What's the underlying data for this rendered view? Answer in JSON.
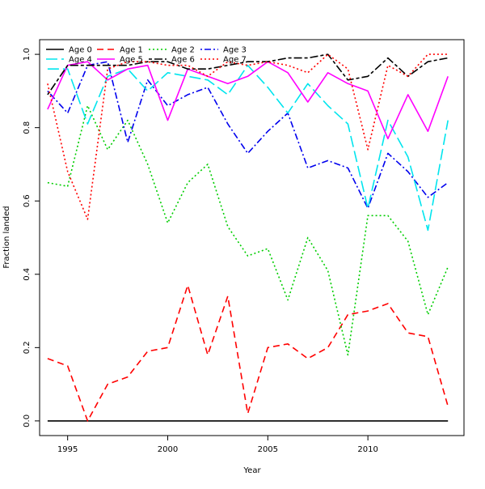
{
  "chart_data": {
    "type": "line",
    "title": "",
    "xlabel": "Year",
    "ylabel": "Fraction landed",
    "xlim": [
      1993.6,
      2014.8
    ],
    "ylim": [
      -0.04,
      1.04
    ],
    "xticks": [
      1995,
      2000,
      2005,
      2010
    ],
    "yticks": [
      0.0,
      0.2,
      0.4,
      0.6,
      0.8,
      1.0
    ],
    "ytick_labels": [
      "0.0",
      "0.2",
      "0.4",
      "0.6",
      "0.8",
      "1.0"
    ],
    "grid": false,
    "legend_position": "top-left",
    "x": [
      1994,
      1995,
      1996,
      1997,
      1998,
      1999,
      2000,
      2001,
      2002,
      2003,
      2004,
      2005,
      2006,
      2007,
      2008,
      2009,
      2010,
      2011,
      2012,
      2013,
      2014
    ],
    "series": [
      {
        "name": "Age 0",
        "color": "#000000",
        "dash": "solid",
        "values": [
          0,
          0,
          0,
          0,
          0,
          0,
          0,
          0,
          0,
          0,
          0,
          0,
          0,
          0,
          0,
          0,
          0,
          0,
          0,
          0,
          0
        ]
      },
      {
        "name": "Age 1",
        "color": "#ff0000",
        "dash": "dashed",
        "values": [
          0.17,
          0.15,
          0.0,
          0.1,
          0.12,
          0.19,
          0.2,
          0.37,
          0.18,
          0.34,
          0.02,
          0.2,
          0.21,
          0.17,
          0.2,
          0.29,
          0.3,
          0.32,
          0.24,
          0.23,
          0.04
        ]
      },
      {
        "name": "Age 2",
        "color": "#00cd00",
        "dash": "dotted",
        "values": [
          0.65,
          0.64,
          0.86,
          0.74,
          0.82,
          0.7,
          0.54,
          0.65,
          0.7,
          0.53,
          0.45,
          0.47,
          0.33,
          0.5,
          0.41,
          0.18,
          0.56,
          0.56,
          0.49,
          0.29,
          0.42
        ]
      },
      {
        "name": "Age 3",
        "color": "#0000ee",
        "dash": "dotdash",
        "values": [
          0.9,
          0.84,
          0.97,
          0.98,
          0.76,
          0.93,
          0.86,
          0.89,
          0.91,
          0.81,
          0.73,
          0.79,
          0.84,
          0.69,
          0.71,
          0.69,
          0.58,
          0.73,
          0.68,
          0.61,
          0.65
        ]
      },
      {
        "name": "Age 4",
        "color": "#00e5ee",
        "dash": "longdash",
        "values": [
          0.96,
          0.96,
          0.81,
          0.94,
          0.96,
          0.9,
          0.95,
          0.94,
          0.93,
          0.89,
          0.97,
          0.91,
          0.84,
          0.92,
          0.86,
          0.81,
          0.58,
          0.82,
          0.72,
          0.52,
          0.82
        ]
      },
      {
        "name": "Age 5",
        "color": "#ff00ff",
        "dash": "solid",
        "values": [
          0.85,
          0.97,
          0.98,
          0.93,
          0.96,
          0.97,
          0.82,
          0.96,
          0.94,
          0.92,
          0.94,
          0.98,
          0.95,
          0.87,
          0.95,
          0.92,
          0.9,
          0.77,
          0.89,
          0.79,
          0.94
        ]
      },
      {
        "name": "Age 6",
        "color": "#000000",
        "dash": "twodash",
        "values": [
          0.89,
          0.97,
          0.97,
          0.97,
          0.97,
          0.98,
          0.98,
          0.96,
          0.96,
          0.97,
          0.98,
          0.98,
          0.99,
          0.99,
          1.0,
          0.93,
          0.94,
          0.99,
          0.94,
          0.98,
          0.99
        ]
      },
      {
        "name": "Age 7",
        "color": "#ff0000",
        "dash": "dotted",
        "values": [
          0.92,
          0.68,
          0.55,
          0.96,
          0.98,
          0.98,
          0.97,
          0.97,
          0.94,
          0.98,
          0.97,
          0.98,
          0.97,
          0.95,
          1.0,
          0.96,
          0.74,
          0.97,
          0.94,
          1.0,
          1.0
        ]
      }
    ]
  }
}
